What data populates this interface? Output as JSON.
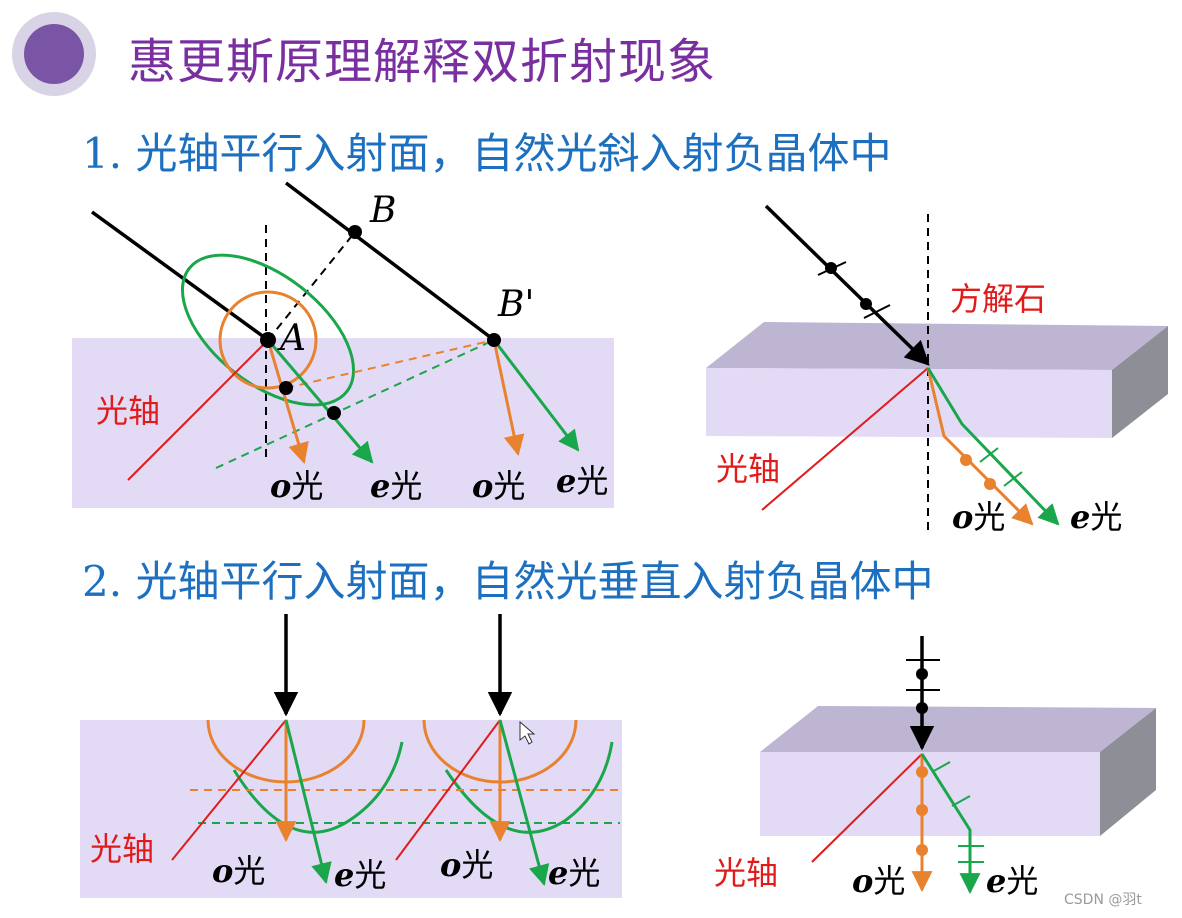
{
  "title": "惠更斯原理解释双折射现象",
  "section1": {
    "num": "1.",
    "text": "光轴平行入射面，自然光斜入射负晶体中"
  },
  "section2": {
    "num": "2.",
    "text": "光轴平行入射面，自然光垂直入射负晶体中"
  },
  "labels": {
    "optic_axis": "光轴",
    "o_light_prefix": "o",
    "e_light_prefix": "e",
    "light_suffix": "光",
    "point_A": "A",
    "point_B": "B",
    "point_B_prime": "B'",
    "calcite": "方解石"
  },
  "watermark": "CSDN @羽t",
  "colors": {
    "title": "#7a2fa0",
    "section": "#1d6fbf",
    "crystal": "#e3dbf6",
    "o_ray": "#e8822f",
    "e_ray": "#1aa64a",
    "optic_axis": "#e01b1b",
    "incident": "#000000"
  }
}
